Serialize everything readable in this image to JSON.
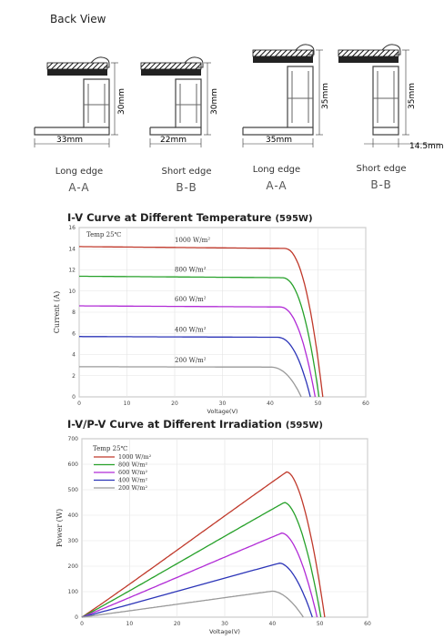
{
  "back_view": {
    "title": "Back View",
    "profiles": [
      {
        "edge": "Long edge",
        "section": "A-A",
        "width_label": "33mm",
        "height_label": "30mm"
      },
      {
        "edge": "Short edge",
        "section": "B-B",
        "width_label": "22mm",
        "height_label": "30mm"
      },
      {
        "edge": "Long edge",
        "section": "A-A",
        "width_label": "35mm",
        "height_label": "35mm"
      },
      {
        "edge": "Short edge",
        "section": "B-B",
        "width_label": "14.5mm",
        "height_label": "35mm"
      }
    ]
  },
  "colors": {
    "c1000": "#c0392b",
    "c800": "#27a12a",
    "c600": "#b12bd6",
    "c400": "#2c35b8",
    "c200": "#9a9a9a"
  },
  "chart_data": [
    {
      "type": "line",
      "title": "I-V Curve at Different Temperature",
      "title_tag": "(595W)",
      "xlabel": "Voltage(V)",
      "ylabel": "Current  (A)",
      "annotation": "Temp  25℃",
      "xlim": [
        0,
        60
      ],
      "ylim": [
        0,
        16
      ],
      "xticks": [
        "0",
        "10",
        "20",
        "30",
        "40",
        "50",
        "60"
      ],
      "yticks": [
        "0",
        "2",
        "4",
        "6",
        "8",
        "10",
        "12",
        "14",
        "16"
      ],
      "series": [
        {
          "name": "1000  W/m²",
          "isc": 14.2,
          "voc": 51.0,
          "knee": 43.0
        },
        {
          "name": "800  W/m²",
          "isc": 11.4,
          "voc": 50.2,
          "knee": 42.5
        },
        {
          "name": "600  W/m²",
          "isc": 8.6,
          "voc": 49.4,
          "knee": 42.0
        },
        {
          "name": "400  W/m²",
          "isc": 5.7,
          "voc": 48.4,
          "knee": 41.5
        },
        {
          "name": "200  W/m²",
          "isc": 2.85,
          "voc": 46.5,
          "knee": 40.0
        }
      ]
    },
    {
      "type": "line",
      "title": "I-V/P-V Curve at Different Irradiation",
      "title_tag": "(595W)",
      "xlabel": "Voltage(V)",
      "ylabel": "Power (W)",
      "annotation": "Temp  25℃",
      "xlim": [
        0,
        60
      ],
      "ylim": [
        0,
        700
      ],
      "xticks": [
        "0",
        "10",
        "20",
        "30",
        "40",
        "50",
        "60"
      ],
      "yticks": [
        "0",
        "100",
        "200",
        "300",
        "400",
        "500",
        "600",
        "700"
      ],
      "legend": [
        "1000  W/m²",
        "800  W/m²",
        "600  W/m²",
        "400  W/m²",
        "200  W/m²"
      ],
      "legend_position": "top-left",
      "series": [
        {
          "name": "1000  W/m²",
          "vmp": 43.0,
          "pmp": 570,
          "voc": 51.0
        },
        {
          "name": "800  W/m²",
          "vmp": 42.5,
          "pmp": 450,
          "voc": 50.2
        },
        {
          "name": "600  W/m²",
          "vmp": 42.0,
          "pmp": 330,
          "voc": 49.4
        },
        {
          "name": "400  W/m²",
          "vmp": 41.5,
          "pmp": 212,
          "voc": 48.4
        },
        {
          "name": "200  W/m²",
          "vmp": 40.0,
          "pmp": 102,
          "voc": 46.5
        }
      ]
    }
  ]
}
